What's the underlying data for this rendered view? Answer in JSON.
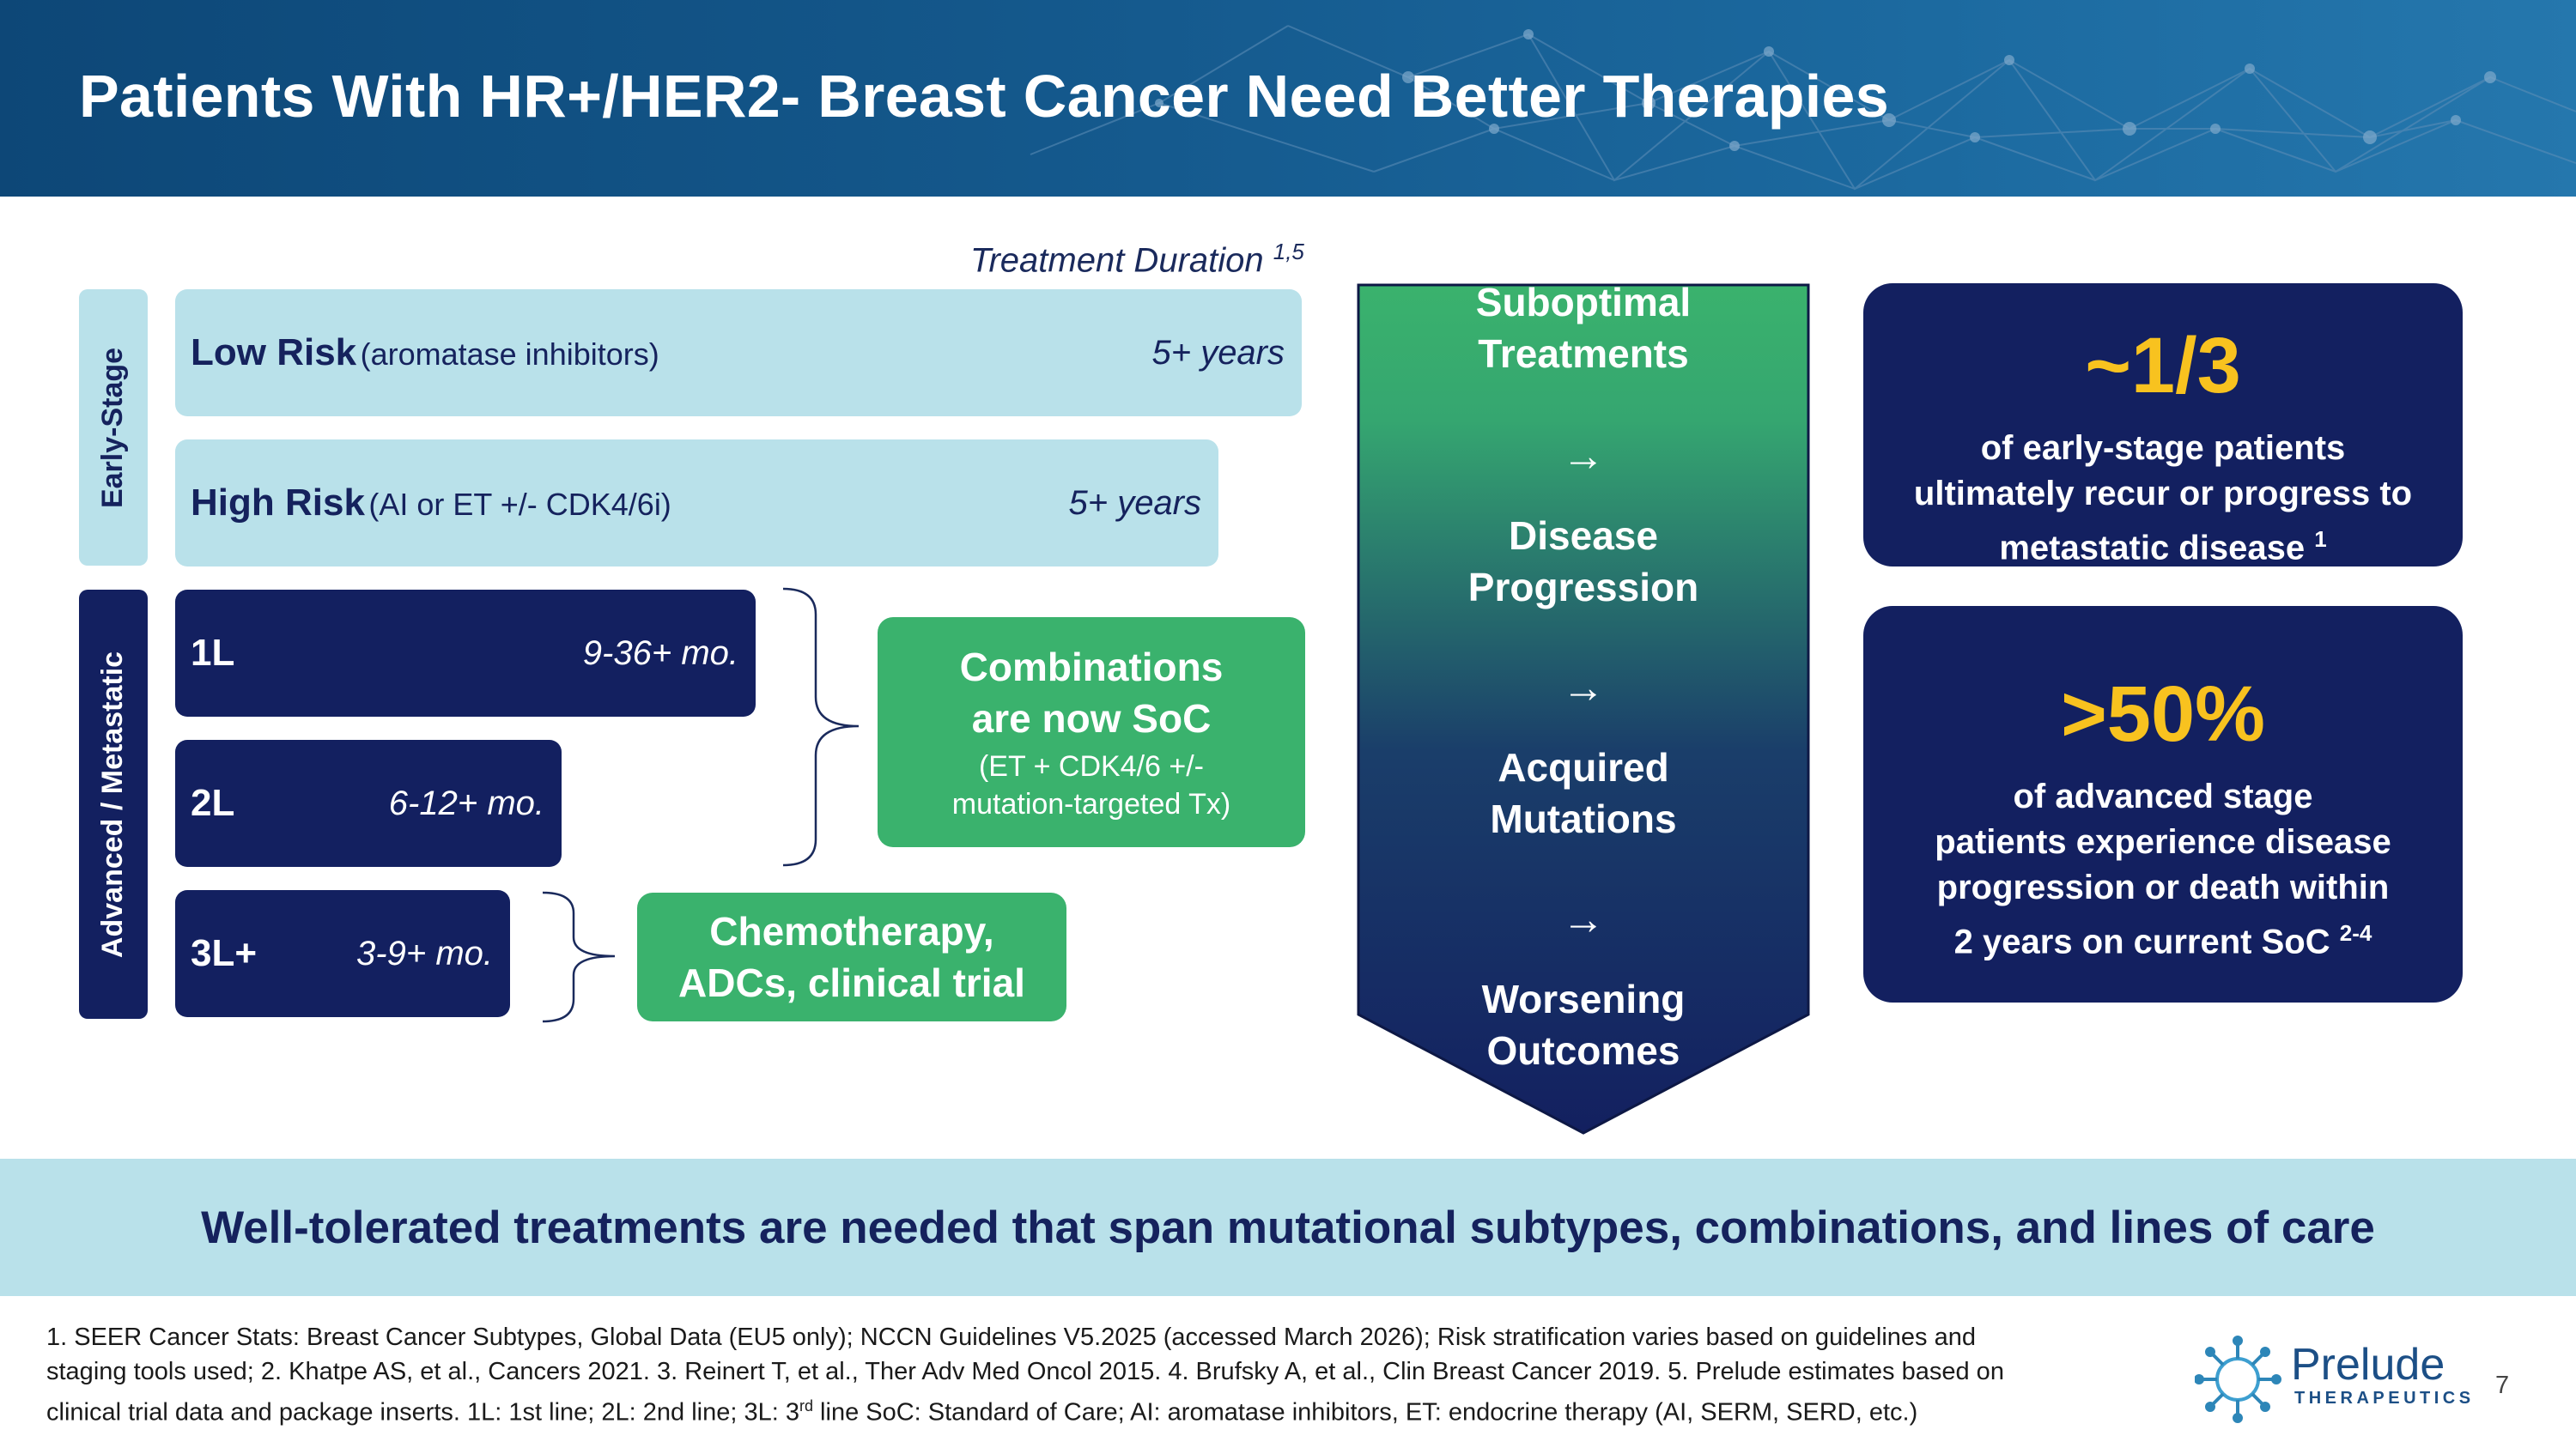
{
  "header": {
    "title": "Patients With HR+/HER2- Breast Cancer Need Better Therapies"
  },
  "treatment_duration": {
    "label": "Treatment Duration",
    "sup": "1,5"
  },
  "stages": {
    "early": "Early-Stage",
    "advanced": "Advanced / Metastatic"
  },
  "bars": {
    "low": {
      "label": "Low Risk",
      "sub": "(aromatase inhibitors)",
      "duration": "5+ years"
    },
    "high": {
      "label": "High Risk",
      "sub": "(AI or ET +/- CDK4/6i)",
      "duration": "5+ years"
    },
    "l1": {
      "label": "1L",
      "duration": "9-36+ mo."
    },
    "l2": {
      "label": "2L",
      "duration": "6-12+ mo."
    },
    "l3": {
      "label": "3L+",
      "duration": "3-9+ mo."
    }
  },
  "combinations": {
    "title_line1": "Combinations",
    "title_line2": "are now SoC",
    "sub_line1": "(ET + CDK4/6 +/-",
    "sub_line2": "mutation-targeted Tx)"
  },
  "chemo": {
    "line1": "Chemotherapy,",
    "line2": "ADCs, clinical trial"
  },
  "chevron": {
    "s1a": "Suboptimal",
    "s1b": "Treatments",
    "s2a": "Disease",
    "s2b": "Progression",
    "s3a": "Acquired",
    "s3b": "Mutations",
    "s4a": "Worsening",
    "s4b": "Outcomes",
    "arrow": "→",
    "gradient_top": "#3ab26d",
    "gradient_bottom": "#132060"
  },
  "stats": {
    "s1": {
      "big": "~1/3",
      "l1": "of early-stage patients",
      "l2": "ultimately recur or progress to",
      "l3": "metastatic disease",
      "sup": "1"
    },
    "s2": {
      "big": ">50%",
      "l1": "of advanced stage",
      "l2": "patients experience disease",
      "l3": "progression or death within",
      "l4": "2 years on current SoC",
      "sup": "2-4"
    }
  },
  "banner": "Well-tolerated treatments are needed that span mutational subtypes, combinations, and lines of care",
  "footnote": {
    "line1": "1. SEER Cancer Stats: Breast Cancer Subtypes, Global Data (EU5 only); NCCN Guidelines V5.2025 (accessed March 2026); Risk stratification varies based on guidelines and",
    "line2": "staging tools used; 2. Khatpe AS, et al., Cancers 2021. 3. Reinert T, et al., Ther Adv Med Oncol 2015. 4. Brufsky A, et al., Clin Breast Cancer 2019. 5. Prelude estimates based on",
    "line3a": "clinical trial data and package inserts. 1L: 1st line; 2L: 2nd line; 3L: 3",
    "line3sup": "rd",
    "line3b": " line SoC: Standard of Care; AI: aromatase inhibitors, ET: endocrine therapy (AI, SERM, SERD, etc.)"
  },
  "logo": {
    "name": "Prelude",
    "tagline": "THERAPEUTICS"
  },
  "page_number": "7",
  "colors": {
    "navy": "#132060",
    "green": "#3ab26d",
    "light_blue": "#b9e1ea",
    "gold": "#f8c21f"
  }
}
